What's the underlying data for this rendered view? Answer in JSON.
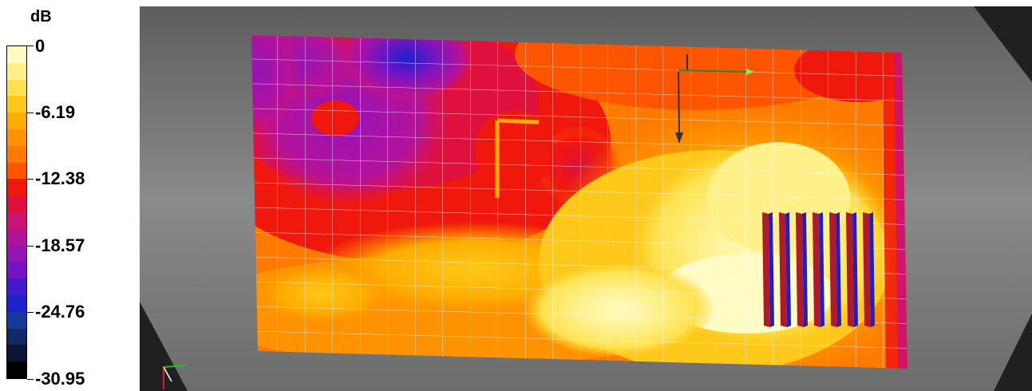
{
  "legend": {
    "unit": "dB",
    "ticks": [
      "0",
      "-6.19",
      "-12.38",
      "-18.57",
      "-24.76",
      "-30.95"
    ],
    "tick_values": [
      0,
      -6.19,
      -12.38,
      -18.57,
      -24.76,
      -30.95
    ],
    "range": [
      -30.95,
      0
    ],
    "bands_top_to_bottom": [
      "#fffbc2",
      "#fff08a",
      "#ffe24f",
      "#ffc81a",
      "#ffac00",
      "#ff9200",
      "#ff7a00",
      "#ff5400",
      "#f0180c",
      "#e0103c",
      "#cc1273",
      "#b5129a",
      "#9514b4",
      "#7314c4",
      "#4418cc",
      "#1c22cc",
      "#143a99",
      "#112866",
      "#0b1433",
      "#000000"
    ]
  },
  "colors": {
    "viewport_background": "#202020",
    "stage_gray": "#888888",
    "grid_lines": "#ffffff"
  },
  "icons": [
    "axis-triad-icon",
    "probe-arrows-icon",
    "radiator-fins-icon"
  ]
}
